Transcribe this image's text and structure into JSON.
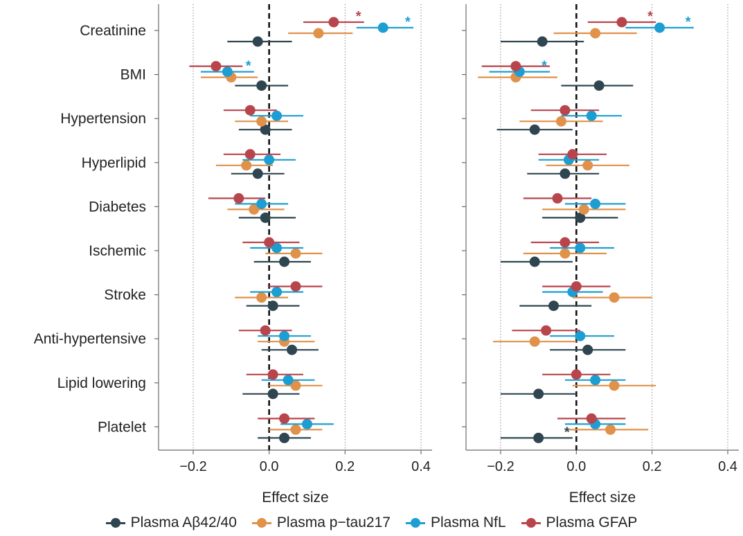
{
  "chart_data": [
    {
      "type": "scatter",
      "panel": "left",
      "title": "",
      "xlabel": "Effect size",
      "ylabel": "",
      "xlim": [
        -0.3,
        0.43
      ],
      "xticks": [
        -0.2,
        0.0,
        0.2,
        0.4
      ],
      "xtick_labels": [
        "−0.2",
        "0.0",
        "0.2",
        "0.4"
      ],
      "grid": "dotted vertical at ±0.2 and 0.4; dashed reference at 0",
      "categories": [
        "Creatinine",
        "BMI",
        "Hypertension",
        "Hyperlipid",
        "Diabetes",
        "Ischemic",
        "Stroke",
        "Anti-hypertensive",
        "Lipid lowering",
        "Platelet"
      ],
      "series": [
        {
          "name": "Plasma Aβ42/40",
          "color": "#2f4550",
          "values": [
            -0.03,
            -0.02,
            -0.01,
            -0.03,
            -0.01,
            0.04,
            0.01,
            0.06,
            0.01,
            0.04
          ],
          "lower": [
            -0.11,
            -0.09,
            -0.08,
            -0.1,
            -0.08,
            -0.04,
            -0.06,
            -0.02,
            -0.07,
            -0.03
          ],
          "upper": [
            0.06,
            0.05,
            0.06,
            0.04,
            0.07,
            0.11,
            0.08,
            0.13,
            0.08,
            0.11
          ],
          "significant": [
            false,
            false,
            false,
            false,
            false,
            false,
            false,
            false,
            false,
            false
          ]
        },
        {
          "name": "Plasma p−tau217",
          "color": "#e0914a",
          "values": [
            0.13,
            -0.1,
            -0.02,
            -0.06,
            -0.04,
            0.07,
            -0.02,
            0.04,
            0.07,
            0.07
          ],
          "lower": [
            0.05,
            -0.18,
            -0.09,
            -0.14,
            -0.11,
            -0.01,
            -0.09,
            -0.03,
            0.0,
            0.0
          ],
          "upper": [
            0.22,
            -0.03,
            0.05,
            0.01,
            0.04,
            0.14,
            0.05,
            0.12,
            0.14,
            0.14
          ],
          "significant": [
            false,
            false,
            false,
            false,
            false,
            false,
            false,
            false,
            false,
            false
          ]
        },
        {
          "name": "Plasma NfL",
          "color": "#1d9ed3",
          "values": [
            0.3,
            -0.11,
            0.02,
            0.0,
            -0.02,
            0.02,
            0.02,
            0.04,
            0.05,
            0.1
          ],
          "lower": [
            0.23,
            -0.18,
            -0.05,
            -0.07,
            -0.09,
            -0.05,
            -0.05,
            -0.03,
            -0.02,
            0.03
          ],
          "upper": [
            0.38,
            -0.04,
            0.09,
            0.07,
            0.05,
            0.09,
            0.09,
            0.11,
            0.12,
            0.17
          ],
          "significant": [
            true,
            true,
            false,
            false,
            false,
            false,
            false,
            false,
            false,
            false
          ]
        },
        {
          "name": "Plasma GFAP",
          "color": "#b8454b",
          "values": [
            0.17,
            -0.14,
            -0.05,
            -0.05,
            -0.08,
            0.0,
            0.07,
            -0.01,
            0.01,
            0.04
          ],
          "lower": [
            0.09,
            -0.21,
            -0.12,
            -0.12,
            -0.16,
            -0.07,
            0.0,
            -0.08,
            -0.06,
            -0.03
          ],
          "upper": [
            0.25,
            -0.07,
            0.02,
            0.03,
            -0.01,
            0.08,
            0.14,
            0.06,
            0.09,
            0.12
          ],
          "significant": [
            true,
            false,
            false,
            false,
            false,
            false,
            false,
            false,
            false,
            false
          ]
        }
      ]
    },
    {
      "type": "scatter",
      "panel": "right",
      "title": "",
      "xlabel": "Effect size",
      "ylabel": "",
      "xlim": [
        -0.29,
        0.44
      ],
      "xticks": [
        -0.2,
        0.0,
        0.2,
        0.4
      ],
      "xtick_labels": [
        "−0.2",
        "0.0",
        "0.2",
        "0.4"
      ],
      "grid": "dotted vertical at ±0.2 and 0.4; dashed reference at 0",
      "categories": [
        "Creatinine",
        "BMI",
        "Hypertension",
        "Hyperlipid",
        "Diabetes",
        "Ischemic",
        "Stroke",
        "Anti-hypertensive",
        "Lipid lowering",
        "Platelet"
      ],
      "series": [
        {
          "name": "Plasma Aβ42/40",
          "color": "#2f4550",
          "values": [
            -0.09,
            0.06,
            -0.11,
            -0.03,
            0.01,
            -0.11,
            -0.06,
            0.03,
            -0.1,
            -0.1
          ],
          "lower": [
            -0.2,
            -0.04,
            -0.21,
            -0.13,
            -0.09,
            -0.2,
            -0.15,
            -0.07,
            -0.2,
            -0.2
          ],
          "upper": [
            0.02,
            0.15,
            -0.01,
            0.06,
            0.11,
            -0.01,
            0.04,
            0.13,
            0.0,
            -0.01
          ],
          "significant": [
            false,
            false,
            false,
            false,
            false,
            false,
            false,
            false,
            false,
            true
          ]
        },
        {
          "name": "Plasma p−tau217",
          "color": "#e0914a",
          "values": [
            0.05,
            -0.16,
            -0.04,
            0.03,
            0.02,
            -0.03,
            0.1,
            -0.11,
            0.1,
            0.09
          ],
          "lower": [
            -0.06,
            -0.26,
            -0.15,
            -0.08,
            -0.09,
            -0.14,
            -0.01,
            -0.22,
            -0.01,
            -0.02
          ],
          "upper": [
            0.16,
            -0.05,
            0.07,
            0.14,
            0.13,
            0.08,
            0.2,
            0.0,
            0.21,
            0.19
          ],
          "significant": [
            false,
            false,
            false,
            false,
            false,
            false,
            false,
            false,
            false,
            false
          ]
        },
        {
          "name": "Plasma NfL",
          "color": "#1d9ed3",
          "values": [
            0.22,
            -0.15,
            0.04,
            -0.02,
            0.05,
            0.01,
            -0.01,
            0.01,
            0.05,
            0.05
          ],
          "lower": [
            0.13,
            -0.23,
            -0.04,
            -0.1,
            -0.03,
            -0.07,
            -0.09,
            -0.07,
            -0.03,
            -0.03
          ],
          "upper": [
            0.31,
            -0.07,
            0.12,
            0.06,
            0.13,
            0.1,
            0.07,
            0.1,
            0.13,
            0.13
          ],
          "significant": [
            true,
            true,
            false,
            false,
            false,
            false,
            false,
            false,
            false,
            false
          ]
        },
        {
          "name": "Plasma GFAP",
          "color": "#b8454b",
          "values": [
            0.12,
            -0.16,
            -0.03,
            -0.01,
            -0.05,
            -0.03,
            0.0,
            -0.08,
            0.0,
            0.04
          ],
          "lower": [
            0.03,
            -0.25,
            -0.12,
            -0.1,
            -0.14,
            -0.12,
            -0.09,
            -0.17,
            -0.09,
            -0.05
          ],
          "upper": [
            0.21,
            -0.07,
            0.06,
            0.08,
            0.04,
            0.06,
            0.09,
            0.01,
            0.09,
            0.13
          ],
          "significant": [
            true,
            false,
            false,
            false,
            false,
            false,
            false,
            false,
            false,
            false
          ]
        }
      ]
    }
  ],
  "legend": {
    "items": [
      {
        "label": "Plasma Aβ42/40",
        "color": "#2f4550"
      },
      {
        "label": "Plasma p−tau217",
        "color": "#e0914a"
      },
      {
        "label": "Plasma NfL",
        "color": "#1d9ed3"
      },
      {
        "label": "Plasma GFAP",
        "color": "#b8454b"
      }
    ]
  },
  "significance_marker": "*"
}
